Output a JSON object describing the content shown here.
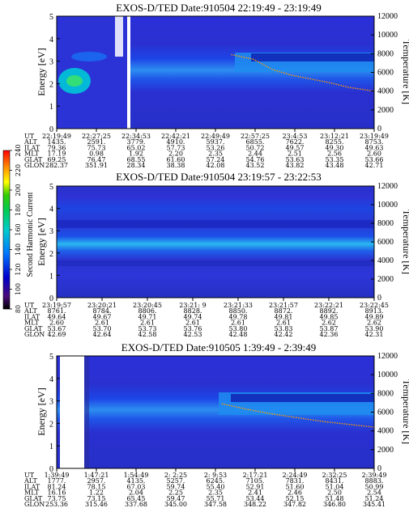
{
  "chart_data": [
    {
      "type": "heatmap",
      "title": "EXOS-D/TED   Date:910504   22:19:49 - 23:19:49",
      "ylabel": "Energy [eV]",
      "y2label": "Temperature [K]",
      "ylim": [
        0,
        5
      ],
      "y_ticks": [
        "0",
        "1",
        "2",
        "3",
        "4",
        "5"
      ],
      "y2lim": [
        0,
        12000
      ],
      "y2_ticks": [
        "0",
        "2000",
        "4000",
        "6000",
        "8000",
        "10000",
        "12000"
      ],
      "table": {
        "row_labels": [
          "UT",
          "ALT",
          "ILAT",
          "MLT",
          "GLAT",
          "GLON"
        ],
        "columns": [
          [
            "22:19:49",
            "1435.",
            "79.36",
            "17.19",
            "69.25",
            "282.37"
          ],
          [
            "22:27:25",
            "2591.",
            "75.73",
            "0.98",
            "76.47",
            "351.91"
          ],
          [
            "22:34:53",
            "3779.",
            "65.02",
            "1.92",
            "68.55",
            "28.34"
          ],
          [
            "22:42:21",
            "4910.",
            "57.73",
            "2.20",
            "61.60",
            "38.38"
          ],
          [
            "22:49:49",
            "5937.",
            "53.26",
            "2.35",
            "57.24",
            "42.08"
          ],
          [
            "22:57:25",
            "6855.",
            "50.72",
            "2.44",
            "54.76",
            "43.52"
          ],
          [
            "23:4:53",
            "7622.",
            "49.57",
            "2.51",
            "53.63",
            "43.82"
          ],
          [
            "23:12:21",
            "8255.",
            "49.30",
            "2.56",
            "53.35",
            "43.48"
          ],
          [
            "23:19:49",
            "8753.",
            "49.63",
            "2.60",
            "53.66",
            "42.71"
          ]
        ]
      },
      "temperature_trace": {
        "x_fraction": [
          0.55,
          0.62,
          0.68,
          0.74,
          0.8,
          0.86,
          0.92,
          1.0
        ],
        "temperature_K": [
          7900,
          7400,
          6300,
          5700,
          5300,
          4900,
          4400,
          4000
        ]
      }
    },
    {
      "type": "heatmap",
      "title": "EXOS-D/TED   Date:910504   23:19:57 - 23:22:53",
      "ylabel": "Energy [eV]",
      "y2label": "Temperature [K]",
      "ylim": [
        0,
        5
      ],
      "y_ticks": [
        "0",
        "1",
        "2",
        "3",
        "4",
        "5"
      ],
      "y2lim": [
        0,
        12000
      ],
      "y2_ticks": [
        "0",
        "2000",
        "4000",
        "6000",
        "8000",
        "10000",
        "12000"
      ],
      "table": {
        "row_labels": [
          "UT",
          "ALT",
          "ILAT",
          "MLT",
          "GLAT",
          "GLON"
        ],
        "columns": [
          [
            "23:19:57",
            "8761.",
            "49.64",
            "2.60",
            "53.67",
            "42.69"
          ],
          [
            "23:20:21",
            "8784.",
            "49.67",
            "2.61",
            "53.70",
            "42.64"
          ],
          [
            "23:20:45",
            "8806.",
            "49.71",
            "2.61",
            "53.73",
            "42.58"
          ],
          [
            "23:21: 9",
            "8828.",
            "49.74",
            "2.61",
            "53.76",
            "42.53"
          ],
          [
            "23:21:33",
            "8850.",
            "49.78",
            "2.61",
            "53.80",
            "42.48"
          ],
          [
            "23:21:57",
            "8872.",
            "49.81",
            "2.61",
            "53.83",
            "42.42"
          ],
          [
            "23:22:21",
            "8892.",
            "49.85",
            "2.62",
            "53.87",
            "42.36"
          ],
          [
            "23:22:45",
            "8913.",
            "49.89",
            "2.62",
            "53.90",
            "42.31"
          ]
        ]
      }
    },
    {
      "type": "heatmap",
      "title": "EXOS-D/TED   Date:910505   1:39:49 - 2:39:49",
      "ylabel": "Energy [eV]",
      "y2label": "Temperature [K]",
      "ylim": [
        0,
        5
      ],
      "y_ticks": [
        "0",
        "1",
        "2",
        "3",
        "4",
        "5"
      ],
      "y2lim": [
        0,
        12000
      ],
      "y2_ticks": [
        "0",
        "2000",
        "4000",
        "6000",
        "8000",
        "10000",
        "12000"
      ],
      "table": {
        "row_labels": [
          "UT",
          "ALT",
          "ILAT",
          "MLT",
          "GLAT",
          "GLON"
        ],
        "columns": [
          [
            "1:39:49",
            "1777.",
            "81.24",
            "16.16",
            "73.75",
            "253.36"
          ],
          [
            "1:47:21",
            "2957.",
            "78.15",
            "1.22",
            "73.15",
            "315.46"
          ],
          [
            "1:54:49",
            "4135.",
            "67.03",
            "2.04",
            "65.45",
            "337.68"
          ],
          [
            "2: 2:25",
            "5257.",
            "59.74",
            "2.25",
            "59.47",
            "345.00"
          ],
          [
            "2: 9:53",
            "6245.",
            "55.40",
            "2.35",
            "55.71",
            "347.58"
          ],
          [
            "2:17:21",
            "7105.",
            "52.91",
            "2.41",
            "53.44",
            "348.22"
          ],
          [
            "2:24:49",
            "7831.",
            "51.60",
            "2.46",
            "52.15",
            "347.82"
          ],
          [
            "2:32:25",
            "8431.",
            "51.04",
            "2.50",
            "51.48",
            "346.80"
          ],
          [
            "2:39:49",
            "8883.",
            "50.99",
            "2.54",
            "51.24",
            "345.41"
          ]
        ]
      },
      "temperature_trace": {
        "x_fraction": [
          0.52,
          0.6,
          0.68,
          0.76,
          0.84,
          0.92,
          1.0
        ],
        "temperature_K": [
          6900,
          6300,
          5800,
          5400,
          5000,
          4700,
          4400
        ]
      }
    }
  ],
  "colorbar": {
    "label": "Second Harmonic Current",
    "range": [
      80,
      240
    ],
    "ticks": [
      "80",
      "100",
      "120",
      "140",
      "160",
      "180",
      "200",
      "220",
      "240"
    ],
    "colors": [
      "#000000",
      "#5a0e8a",
      "#0000dd",
      "#0088ff",
      "#00dddd",
      "#00dd66",
      "#22cc00",
      "#ffff00",
      "#ff8800",
      "#ff0000"
    ]
  }
}
